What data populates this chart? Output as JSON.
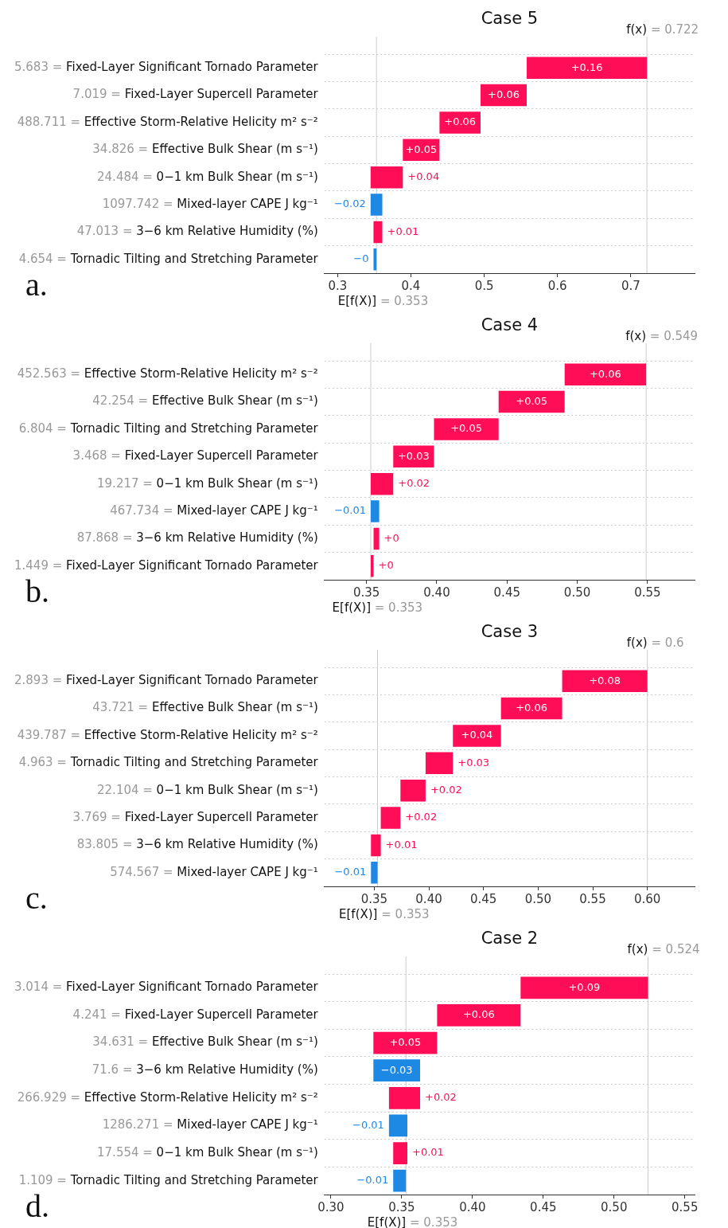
{
  "chart_data": [
    {
      "type": "bar",
      "orientation": "horizontal",
      "title": "Case 5",
      "grid": "y",
      "categories": [
        "5.683 = Fixed-Layer Significant Tornado Parameter",
        "7.019 = Fixed-Layer Supercell Parameter",
        "488.711 = Effective Storm-Relative Helicity m² s⁻²",
        "34.826 = Effective Bulk Shear (m s⁻¹)",
        "24.484 = 0−1 km Bulk Shear (m s⁻¹)",
        "1097.742 = Mixed-layer CAPE J kg⁻¹",
        "47.013 = 3−6 km Relative Humidity (%)",
        "4.654 = Tornadic Tilting and Stretching Parameter"
      ],
      "values": [
        0.164,
        0.063,
        0.056,
        0.05,
        0.044,
        -0.016,
        0.012,
        -0.004
      ],
      "base": [
        0.558,
        0.495,
        0.439,
        0.389,
        0.345,
        0.361,
        0.349,
        0.353
      ],
      "colors": [
        "#ff0d57",
        "#ff0d57",
        "#ff0d57",
        "#ff0d57",
        "#ff0d57",
        "#1e88e5",
        "#ff0d57",
        "#1e88e5"
      ],
      "value_labels": [
        "+0.16",
        "+0.06",
        "+0.06",
        "+0.05",
        "+0.04",
        "−0.02",
        "+0.01",
        "−0"
      ],
      "xlim": [
        0.282,
        0.787
      ],
      "xticks": [
        0.3,
        0.4,
        0.5,
        0.6,
        0.7
      ],
      "ref_lines": [
        {
          "axis": "x",
          "value": 0.353,
          "label": "E[f(X)] = 0.353"
        },
        {
          "axis": "x",
          "value": 0.722,
          "label": "f(x) = 0.722"
        }
      ],
      "annotations": [
        "a."
      ]
    },
    {
      "type": "bar",
      "orientation": "horizontal",
      "title": "Case 4",
      "grid": "y",
      "categories": [
        "452.563 = Effective Storm-Relative Helicity m² s⁻²",
        "42.254 = Effective Bulk Shear (m s⁻¹)",
        "6.804 = Tornadic Tilting and Stretching Parameter",
        "3.468 = Fixed-Layer Supercell Parameter",
        "19.217 = 0−1 km Bulk Shear (m s⁻¹)",
        "467.734 = Mixed-layer CAPE J kg⁻¹",
        "87.868 = 3−6 km Relative Humidity (%)",
        "1.449 = Fixed-Layer Significant Tornado Parameter"
      ],
      "values": [
        0.058,
        0.047,
        0.046,
        0.029,
        0.016,
        -0.006,
        0.004,
        0.002
      ],
      "base": [
        0.491,
        0.444,
        0.398,
        0.369,
        0.353,
        0.359,
        0.355,
        0.353
      ],
      "colors": [
        "#ff0d57",
        "#ff0d57",
        "#ff0d57",
        "#ff0d57",
        "#ff0d57",
        "#1e88e5",
        "#ff0d57",
        "#ff0d57"
      ],
      "value_labels": [
        "+0.06",
        "+0.05",
        "+0.05",
        "+0.03",
        "+0.02",
        "−0.01",
        "+0",
        "+0"
      ],
      "xlim": [
        0.32,
        0.5835
      ],
      "xticks": [
        0.35,
        {
          "value": 0.4,
          "label": "0.40"
        },
        0.45,
        {
          "value": 0.5,
          "label": "0.50"
        },
        0.55
      ],
      "ref_lines": [
        {
          "axis": "x",
          "value": 0.353,
          "label": "E[f(X)] = 0.353"
        },
        {
          "axis": "x",
          "value": 0.549,
          "label": "f(x) = 0.549"
        }
      ],
      "annotations": [
        "b."
      ]
    },
    {
      "type": "bar",
      "orientation": "horizontal",
      "title": "Case 3",
      "grid": "y",
      "categories": [
        "2.893 = Fixed-Layer Significant Tornado Parameter",
        "43.721 = Effective Bulk Shear (m s⁻¹)",
        "439.787 = Effective Storm-Relative Helicity m² s⁻²",
        "4.963 = Tornadic Tilting and Stretching Parameter",
        "22.104 = 0−1 km Bulk Shear (m s⁻¹)",
        "3.769 = Fixed-Layer Supercell Parameter",
        "83.805 = 3−6 km Relative Humidity (%)",
        "574.567 = Mixed-layer CAPE J kg⁻¹"
      ],
      "values": [
        0.078,
        0.056,
        0.044,
        0.025,
        0.023,
        0.018,
        0.009,
        -0.006
      ],
      "base": [
        0.522,
        0.466,
        0.422,
        0.397,
        0.374,
        0.356,
        0.347,
        0.353
      ],
      "colors": [
        "#ff0d57",
        "#ff0d57",
        "#ff0d57",
        "#ff0d57",
        "#ff0d57",
        "#ff0d57",
        "#ff0d57",
        "#1e88e5"
      ],
      "value_labels": [
        "+0.08",
        "+0.06",
        "+0.04",
        "+0.03",
        "+0.02",
        "+0.02",
        "+0.01",
        "−0.01"
      ],
      "xlim": [
        0.3044,
        0.6432
      ],
      "xticks": [
        0.35,
        {
          "value": 0.4,
          "label": "0.40"
        },
        0.45,
        {
          "value": 0.5,
          "label": "0.50"
        },
        0.55,
        {
          "value": 0.6,
          "label": "0.60"
        }
      ],
      "ref_lines": [
        {
          "axis": "x",
          "value": 0.353,
          "label": "E[f(X)] = 0.353"
        },
        {
          "axis": "x",
          "value": 0.6,
          "label": "f(x) = 0.6"
        }
      ],
      "annotations": [
        "c."
      ]
    },
    {
      "type": "bar",
      "orientation": "horizontal",
      "title": "Case 2",
      "grid": "y",
      "categories": [
        "3.014 = Fixed-Layer Significant Tornado Parameter",
        "4.241 = Fixed-Layer Supercell Parameter",
        "34.631 = Effective Bulk Shear (m s⁻¹)",
        "71.6 = 3−6 km Relative Humidity (%)",
        "266.929 = Effective Storm-Relative Helicity m² s⁻²",
        "1286.271 = Mixed-layer CAPE J kg⁻¹",
        "17.554 = 0−1 km Bulk Shear (m s⁻¹)",
        "1.109 = Tornadic Tilting and Stretching Parameter"
      ],
      "values": [
        0.09,
        0.059,
        0.045,
        -0.033,
        0.022,
        -0.013,
        0.01,
        -0.009
      ],
      "base": [
        0.434,
        0.375,
        0.33,
        0.363,
        0.341,
        0.354,
        0.344,
        0.353
      ],
      "colors": [
        "#ff0d57",
        "#ff0d57",
        "#ff0d57",
        "#1e88e5",
        "#ff0d57",
        "#1e88e5",
        "#ff0d57",
        "#1e88e5"
      ],
      "value_labels": [
        "+0.09",
        "+0.06",
        "+0.05",
        "−0.03",
        "+0.02",
        "−0.01",
        "+0.01",
        "−0.01"
      ],
      "xlim": [
        0.2954,
        0.5569
      ],
      "xticks": [
        {
          "value": 0.3,
          "label": "0.30"
        },
        0.35,
        {
          "value": 0.4,
          "label": "0.40"
        },
        0.45,
        {
          "value": 0.5,
          "label": "0.50"
        },
        0.55
      ],
      "ref_lines": [
        {
          "axis": "x",
          "value": 0.353,
          "label": "E[f(X)] = 0.353"
        },
        {
          "axis": "x",
          "value": 0.524,
          "label": "f(x) = 0.524"
        }
      ],
      "annotations": [
        "d."
      ]
    }
  ]
}
